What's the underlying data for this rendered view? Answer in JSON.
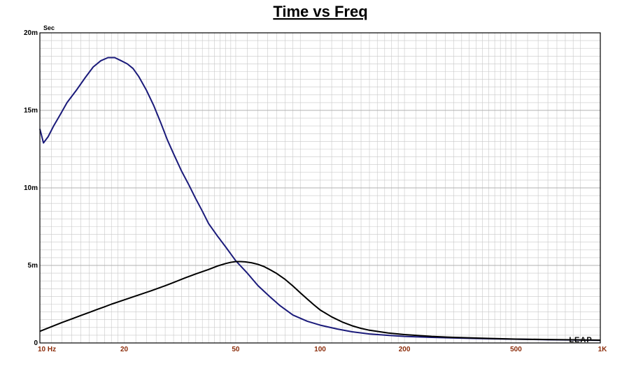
{
  "chart_data": {
    "type": "line",
    "title": "Time vs Freq",
    "ylabel": "Sec",
    "xlabel": "",
    "x_scale": "log",
    "xlim": [
      10,
      1000
    ],
    "ylim": [
      0,
      0.02
    ],
    "grid": true,
    "watermark": "LEAP",
    "x_ticks": [
      {
        "value": 10,
        "label": "10  Hz"
      },
      {
        "value": 20,
        "label": "20"
      },
      {
        "value": 50,
        "label": "50"
      },
      {
        "value": 100,
        "label": "100"
      },
      {
        "value": 200,
        "label": "200"
      },
      {
        "value": 500,
        "label": "500"
      },
      {
        "value": 1000,
        "label": "1K"
      }
    ],
    "y_ticks": [
      {
        "value": 0,
        "label": "0"
      },
      {
        "value": 0.005,
        "label": "5m"
      },
      {
        "value": 0.01,
        "label": "10m"
      },
      {
        "value": 0.015,
        "label": "15m"
      },
      {
        "value": 0.02,
        "label": "20m"
      }
    ],
    "colors": {
      "axis_label": "#8b2c0a",
      "grid": "#c8c8c8",
      "frame": "#000000"
    },
    "series": [
      {
        "color": "#1a1a7a",
        "points": [
          [
            10,
            0.0138
          ],
          [
            10.3,
            0.0129
          ],
          [
            10.7,
            0.0133
          ],
          [
            11.2,
            0.014
          ],
          [
            11.8,
            0.0147
          ],
          [
            12.5,
            0.0155
          ],
          [
            13.5,
            0.0163
          ],
          [
            14.5,
            0.0171
          ],
          [
            15.5,
            0.0178
          ],
          [
            16.5,
            0.0182
          ],
          [
            17.5,
            0.0184
          ],
          [
            18.5,
            0.0184
          ],
          [
            19.5,
            0.0182
          ],
          [
            20.5,
            0.018
          ],
          [
            21.5,
            0.0177
          ],
          [
            22.5,
            0.0172
          ],
          [
            24,
            0.0163
          ],
          [
            25.5,
            0.0153
          ],
          [
            27,
            0.0142
          ],
          [
            28.5,
            0.0131
          ],
          [
            30,
            0.0122
          ],
          [
            32,
            0.0111
          ],
          [
            34,
            0.0102
          ],
          [
            36,
            0.0093
          ],
          [
            38,
            0.0085
          ],
          [
            40,
            0.0077
          ],
          [
            43,
            0.0069
          ],
          [
            46,
            0.0062
          ],
          [
            50,
            0.0053
          ],
          [
            55,
            0.0045
          ],
          [
            60,
            0.0037
          ],
          [
            66,
            0.003
          ],
          [
            72,
            0.0024
          ],
          [
            80,
            0.0018
          ],
          [
            90,
            0.0014
          ],
          [
            100,
            0.00115
          ],
          [
            115,
            0.0009
          ],
          [
            130,
            0.00072
          ],
          [
            150,
            0.00058
          ],
          [
            175,
            0.00049
          ],
          [
            200,
            0.00042
          ],
          [
            250,
            0.00036
          ],
          [
            300,
            0.00032
          ],
          [
            400,
            0.00027
          ],
          [
            500,
            0.00024
          ],
          [
            650,
            0.00021
          ],
          [
            800,
            0.00019
          ],
          [
            1000,
            0.00017
          ]
        ]
      },
      {
        "color": "#000000",
        "points": [
          [
            10,
            0.00075
          ],
          [
            11,
            0.00105
          ],
          [
            12,
            0.00132
          ],
          [
            13,
            0.00155
          ],
          [
            14,
            0.00177
          ],
          [
            15,
            0.00197
          ],
          [
            16,
            0.00216
          ],
          [
            17,
            0.00233
          ],
          [
            18,
            0.0025
          ],
          [
            20,
            0.00278
          ],
          [
            22,
            0.00303
          ],
          [
            25,
            0.00337
          ],
          [
            28,
            0.00369
          ],
          [
            30,
            0.0039
          ],
          [
            33,
            0.0042
          ],
          [
            36,
            0.00445
          ],
          [
            40,
            0.00474
          ],
          [
            43,
            0.00496
          ],
          [
            46,
            0.00512
          ],
          [
            48,
            0.0052
          ],
          [
            50,
            0.00525
          ],
          [
            52,
            0.00525
          ],
          [
            54,
            0.00523
          ],
          [
            57,
            0.00517
          ],
          [
            60,
            0.00507
          ],
          [
            63,
            0.00493
          ],
          [
            66,
            0.00474
          ],
          [
            70,
            0.00448
          ],
          [
            75,
            0.0041
          ],
          [
            80,
            0.00367
          ],
          [
            85,
            0.00323
          ],
          [
            90,
            0.00283
          ],
          [
            95,
            0.00246
          ],
          [
            100,
            0.00213
          ],
          [
            110,
            0.00168
          ],
          [
            120,
            0.00135
          ],
          [
            130,
            0.00111
          ],
          [
            140,
            0.00094
          ],
          [
            150,
            0.00082
          ],
          [
            175,
            0.00064
          ],
          [
            200,
            0.00054
          ],
          [
            250,
            0.00042
          ],
          [
            300,
            0.00036
          ],
          [
            400,
            0.00029
          ],
          [
            500,
            0.00025
          ],
          [
            650,
            0.00022
          ],
          [
            800,
            0.0002
          ],
          [
            1000,
            0.00018
          ]
        ]
      }
    ]
  }
}
